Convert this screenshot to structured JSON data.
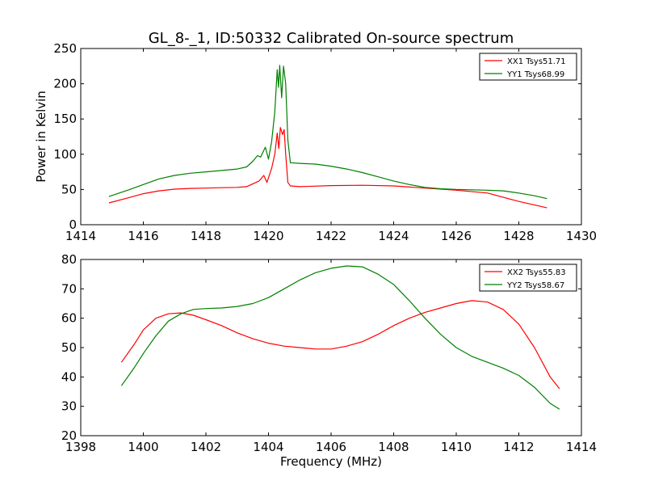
{
  "figure": {
    "title": "GL_8-_1, ID:50332 Calibrated On-source spectrum"
  },
  "chart_data": [
    {
      "type": "line",
      "xlabel": "",
      "ylabel": "Power in Kelvin",
      "xlim": [
        1414,
        1430
      ],
      "ylim": [
        0,
        250
      ],
      "xticks": [
        "1414",
        "1416",
        "1418",
        "1420",
        "1422",
        "1424",
        "1426",
        "1428",
        "1430"
      ],
      "yticks": [
        "0",
        "50",
        "100",
        "150",
        "200",
        "250"
      ],
      "legend_position": "top-right",
      "series": [
        {
          "name": "XX1 Tsys51.71",
          "color": "#ff0000",
          "points": [
            [
              1414.9,
              31
            ],
            [
              1415.5,
              38
            ],
            [
              1416,
              44
            ],
            [
              1416.5,
              48
            ],
            [
              1417,
              50.5
            ],
            [
              1417.5,
              51.5
            ],
            [
              1418,
              52
            ],
            [
              1418.5,
              52.5
            ],
            [
              1419,
              53
            ],
            [
              1419.3,
              54
            ],
            [
              1419.5,
              58
            ],
            [
              1419.7,
              62
            ],
            [
              1419.85,
              70
            ],
            [
              1419.95,
              60
            ],
            [
              1420.1,
              80
            ],
            [
              1420.2,
              100
            ],
            [
              1420.28,
              130
            ],
            [
              1420.33,
              108
            ],
            [
              1420.38,
              138
            ],
            [
              1420.45,
              128
            ],
            [
              1420.5,
              135
            ],
            [
              1420.55,
              100
            ],
            [
              1420.62,
              60
            ],
            [
              1420.7,
              55
            ],
            [
              1421,
              54
            ],
            [
              1422,
              55.5
            ],
            [
              1423,
              56
            ],
            [
              1424,
              55
            ],
            [
              1425,
              52
            ],
            [
              1426,
              49
            ],
            [
              1427,
              45
            ],
            [
              1428,
              33
            ],
            [
              1428.5,
              28
            ],
            [
              1428.9,
              24
            ]
          ]
        },
        {
          "name": "YY1 Tsys68.99",
          "color": "#008000",
          "points": [
            [
              1414.9,
              40
            ],
            [
              1415.5,
              49
            ],
            [
              1416,
              57
            ],
            [
              1416.5,
              65
            ],
            [
              1417,
              70
            ],
            [
              1417.5,
              73
            ],
            [
              1418,
              75
            ],
            [
              1418.5,
              77
            ],
            [
              1419,
              79
            ],
            [
              1419.3,
              82
            ],
            [
              1419.5,
              90
            ],
            [
              1419.65,
              98
            ],
            [
              1419.75,
              96
            ],
            [
              1419.9,
              110
            ],
            [
              1420.0,
              93
            ],
            [
              1420.1,
              118
            ],
            [
              1420.2,
              160
            ],
            [
              1420.28,
              220
            ],
            [
              1420.32,
              195
            ],
            [
              1420.36,
              226
            ],
            [
              1420.42,
              180
            ],
            [
              1420.48,
              225
            ],
            [
              1420.55,
              200
            ],
            [
              1420.62,
              120
            ],
            [
              1420.7,
              88
            ],
            [
              1421,
              87
            ],
            [
              1421.5,
              86
            ],
            [
              1422,
              83
            ],
            [
              1422.5,
              79
            ],
            [
              1423,
              74
            ],
            [
              1423.5,
              68
            ],
            [
              1424,
              62
            ],
            [
              1424.5,
              57
            ],
            [
              1425,
              53
            ],
            [
              1425.5,
              51
            ],
            [
              1426,
              50
            ],
            [
              1427,
              49
            ],
            [
              1427.5,
              48
            ],
            [
              1428,
              45
            ],
            [
              1428.5,
              41
            ],
            [
              1428.9,
              37
            ]
          ]
        }
      ]
    },
    {
      "type": "line",
      "xlabel": "Frequency (MHz)",
      "ylabel": "",
      "xlim": [
        1398,
        1414
      ],
      "ylim": [
        20,
        80
      ],
      "xticks": [
        "1398",
        "1400",
        "1402",
        "1404",
        "1406",
        "1408",
        "1410",
        "1412",
        "1414"
      ],
      "yticks": [
        "20",
        "30",
        "40",
        "50",
        "60",
        "70",
        "80"
      ],
      "legend_position": "top-right",
      "series": [
        {
          "name": "XX2 Tsys55.83",
          "color": "#ff0000",
          "points": [
            [
              1399.3,
              45
            ],
            [
              1399.7,
              51
            ],
            [
              1400,
              56
            ],
            [
              1400.4,
              60
            ],
            [
              1400.8,
              61.5
            ],
            [
              1401.2,
              61.8
            ],
            [
              1401.6,
              61
            ],
            [
              1402,
              59.5
            ],
            [
              1402.5,
              57.5
            ],
            [
              1403,
              55
            ],
            [
              1403.5,
              53
            ],
            [
              1404,
              51.5
            ],
            [
              1404.5,
              50.5
            ],
            [
              1405,
              50
            ],
            [
              1405.5,
              49.5
            ],
            [
              1406,
              49.5
            ],
            [
              1406.5,
              50.5
            ],
            [
              1407,
              52
            ],
            [
              1407.5,
              54.5
            ],
            [
              1408,
              57.5
            ],
            [
              1408.5,
              60
            ],
            [
              1409,
              62
            ],
            [
              1409.5,
              63.5
            ],
            [
              1410,
              65
            ],
            [
              1410.5,
              66
            ],
            [
              1411,
              65.5
            ],
            [
              1411.5,
              63
            ],
            [
              1412,
              58
            ],
            [
              1412.5,
              50
            ],
            [
              1413,
              40
            ],
            [
              1413.3,
              36
            ]
          ]
        },
        {
          "name": "YY2 Tsys58.67",
          "color": "#008000",
          "points": [
            [
              1399.3,
              37
            ],
            [
              1399.7,
              43
            ],
            [
              1400,
              48
            ],
            [
              1400.4,
              54
            ],
            [
              1400.8,
              59
            ],
            [
              1401.2,
              61.5
            ],
            [
              1401.6,
              63
            ],
            [
              1402,
              63.3
            ],
            [
              1402.5,
              63.5
            ],
            [
              1403,
              64
            ],
            [
              1403.5,
              65
            ],
            [
              1404,
              67
            ],
            [
              1404.5,
              70
            ],
            [
              1405,
              73
            ],
            [
              1405.5,
              75.5
            ],
            [
              1406,
              77
            ],
            [
              1406.5,
              77.8
            ],
            [
              1407,
              77.5
            ],
            [
              1407.5,
              75
            ],
            [
              1408,
              71.5
            ],
            [
              1408.5,
              66
            ],
            [
              1409,
              60
            ],
            [
              1409.5,
              54.5
            ],
            [
              1410,
              50
            ],
            [
              1410.5,
              47
            ],
            [
              1411,
              45
            ],
            [
              1411.5,
              43
            ],
            [
              1412,
              40.5
            ],
            [
              1412.5,
              36.5
            ],
            [
              1413,
              31
            ],
            [
              1413.3,
              29
            ]
          ]
        }
      ]
    }
  ]
}
